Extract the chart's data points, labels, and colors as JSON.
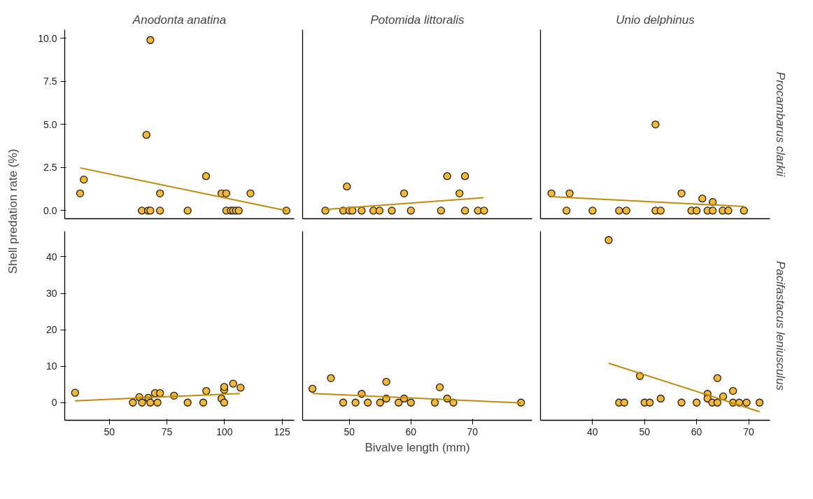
{
  "chart_data": [
    {
      "type": "scatter",
      "title": "Anodonta anatina",
      "xlim": [
        30.6,
        130.3
      ],
      "ylim": [
        -0.47,
        10.5
      ],
      "yticks": [
        {
          "value": 0,
          "label": "0.0"
        },
        2.5,
        {
          "value": 5,
          "label": "5.0"
        },
        7.5,
        {
          "value": 10,
          "label": "10.0"
        }
      ],
      "tick_labels": "y",
      "grid": false,
      "series": [
        {
          "marker": "circle",
          "color": "#f5b82e",
          "x": [
            37.3,
            38.9,
            64.1,
            66.1,
            66.8,
            67.8,
            67.8,
            72.0,
            72.0,
            84.0,
            92.0,
            98.7,
            100.8,
            100.8,
            102.8,
            103.8,
            105.0,
            106.2,
            111.3,
            126.9
          ],
          "values": [
            1.0,
            1.8,
            0,
            4.4,
            0,
            0,
            9.9,
            1.0,
            0,
            0,
            2.0,
            1.0,
            1.0,
            0,
            0,
            0,
            0,
            0,
            1.0,
            0
          ]
        },
        {
          "type": "line",
          "color": "#c08a0a",
          "x": [
            37.3,
            126.9
          ],
          "values": [
            2.48,
            0.0
          ]
        }
      ]
    },
    {
      "type": "scatter",
      "title": "Potomida littoralis",
      "xlim": [
        42.4,
        79.7
      ],
      "ylim": [
        -0.47,
        10.5
      ],
      "tick_labels": false,
      "grid": false,
      "series": [
        {
          "marker": "circle",
          "color": "#f5b82e",
          "x": [
            46.1,
            49.0,
            49.6,
            50.0,
            50.5,
            52.0,
            53.9,
            54.9,
            56.9,
            58.9,
            60.0,
            64.9,
            65.9,
            67.9,
            68.8,
            68.8,
            70.9,
            71.9
          ],
          "values": [
            0,
            0,
            1.4,
            0,
            0,
            0,
            0,
            0,
            0,
            1.0,
            0,
            0,
            2.0,
            1.0,
            2.0,
            0,
            0,
            0
          ]
        },
        {
          "type": "line",
          "color": "#c08a0a",
          "x": [
            46.1,
            71.8
          ],
          "values": [
            0.07,
            0.75
          ]
        }
      ]
    },
    {
      "type": "scatter",
      "title": "Unio delphinus",
      "y2label": "Procambarus clarkii",
      "xlim": [
        30.0,
        74.1
      ],
      "ylim": [
        -0.47,
        10.5
      ],
      "tick_labels": false,
      "grid": false,
      "series": [
        {
          "marker": "circle",
          "color": "#f5b82e",
          "x": [
            32.1,
            35.0,
            35.6,
            40.0,
            45.1,
            46.5,
            52.1,
            52.1,
            53.1,
            57.1,
            59.0,
            60.0,
            61.1,
            62.1,
            63.1,
            63.1,
            65.0,
            66.1,
            69.1
          ],
          "values": [
            1.0,
            0,
            1.0,
            0,
            0,
            0,
            5.0,
            0,
            0,
            1.0,
            0,
            0,
            0.7,
            0,
            0.5,
            0,
            0,
            0,
            0
          ]
        },
        {
          "type": "line",
          "color": "#c08a0a",
          "x": [
            32.1,
            69.1
          ],
          "values": [
            0.81,
            0.24
          ]
        }
      ]
    },
    {
      "type": "scatter",
      "ylabel": "Shell predation rate (%)",
      "xlim": [
        30.6,
        130.3
      ],
      "xticks": [
        50,
        75,
        100,
        125
      ],
      "ylim": [
        -4.85,
        47.0
      ],
      "yticks": [
        0,
        10,
        20,
        30,
        40
      ],
      "grid": false,
      "series": [
        {
          "marker": "circle",
          "color": "#f5b82e",
          "x": [
            35.1,
            60.2,
            63.0,
            64.2,
            66.9,
            67.8,
            69.8,
            70.9,
            72.0,
            78.1,
            84.0,
            90.8,
            92.1,
            98.7,
            99.9,
            99.9,
            99.9,
            103.8,
            107.0
          ],
          "values": [
            2.7,
            0,
            1.5,
            0,
            1.3,
            0,
            2.6,
            0,
            2.6,
            1.9,
            0,
            0,
            3.2,
            1.1,
            0,
            3.5,
            4.3,
            5.2,
            4.1
          ]
        },
        {
          "type": "line",
          "color": "#c08a0a",
          "x": [
            35.1,
            106.7
          ],
          "values": [
            0.5,
            2.5
          ]
        }
      ]
    },
    {
      "type": "scatter",
      "xlabel": "Bivalve length (mm)",
      "xlim": [
        42.4,
        79.7
      ],
      "xticks": [
        50,
        60,
        70
      ],
      "ylim": [
        -4.85,
        47.0
      ],
      "tick_labels": "x",
      "grid": false,
      "series": [
        {
          "marker": "circle",
          "color": "#f5b82e",
          "x": [
            44.0,
            47.0,
            49.0,
            51.0,
            52.0,
            53.0,
            55.0,
            56.0,
            56.0,
            58.0,
            58.9,
            60.0,
            63.9,
            64.7,
            65.9,
            66.9,
            77.9
          ],
          "values": [
            3.8,
            6.7,
            0,
            0,
            2.4,
            0,
            0,
            5.7,
            1.1,
            0,
            1.1,
            0,
            0,
            4.2,
            1.1,
            0,
            0
          ]
        },
        {
          "type": "line",
          "color": "#c08a0a",
          "x": [
            44.0,
            77.9
          ],
          "values": [
            2.5,
            -0.1
          ]
        }
      ]
    },
    {
      "type": "scatter",
      "y2label": "Pacifastacus leniusculus",
      "xlim": [
        30.0,
        74.1
      ],
      "xticks": [
        40,
        50,
        60,
        70
      ],
      "ylim": [
        -4.85,
        47.0
      ],
      "tick_labels": "x",
      "grid": false,
      "series": [
        {
          "marker": "circle",
          "color": "#f5b82e",
          "x": [
            43.1,
            45.1,
            46.1,
            49.1,
            50.0,
            51.0,
            53.1,
            57.1,
            60.0,
            62.1,
            62.1,
            63.0,
            64.0,
            64.0,
            65.1,
            67.0,
            67.0,
            68.2,
            69.6,
            72.1
          ],
          "values": [
            44.6,
            0,
            0,
            7.3,
            0,
            0,
            1.1,
            0,
            0,
            2.4,
            1.1,
            0,
            0,
            6.7,
            1.7,
            3.2,
            0,
            0,
            0,
            0
          ]
        },
        {
          "type": "line",
          "color": "#c08a0a",
          "x": [
            43.1,
            72.1
          ],
          "values": [
            10.8,
            -2.5
          ]
        }
      ]
    }
  ]
}
